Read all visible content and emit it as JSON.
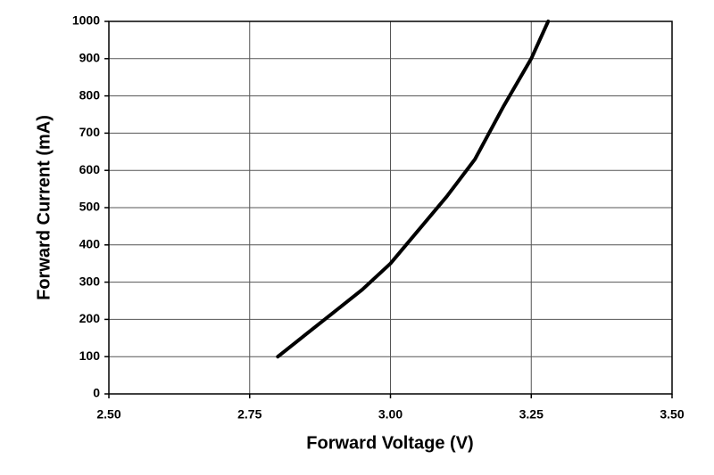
{
  "chart_data": {
    "type": "line",
    "xlabel": "Forward Voltage (V)",
    "ylabel": "Forward Current (mA)",
    "series": [
      {
        "name": "Forward Current",
        "color": "#000000",
        "x": [
          2.8,
          2.85,
          2.9,
          2.95,
          3.0,
          3.05,
          3.1,
          3.15,
          3.2,
          3.25,
          3.28
        ],
        "values": [
          100,
          160,
          220,
          280,
          350,
          440,
          530,
          630,
          770,
          900,
          1000
        ]
      }
    ],
    "xlim": [
      2.5,
      3.5
    ],
    "xticks": [
      {
        "value": 2.5,
        "label": "2.50"
      },
      {
        "value": 2.75,
        "label": "2.75"
      },
      {
        "value": 3.0,
        "label": "3.00"
      },
      {
        "value": 3.25,
        "label": "3.25"
      },
      {
        "value": 3.5,
        "label": "3.50"
      }
    ],
    "ylim": [
      0,
      1000
    ],
    "yticks": [
      0,
      100,
      200,
      300,
      400,
      500,
      600,
      700,
      800,
      900,
      1000
    ],
    "grid": true
  }
}
